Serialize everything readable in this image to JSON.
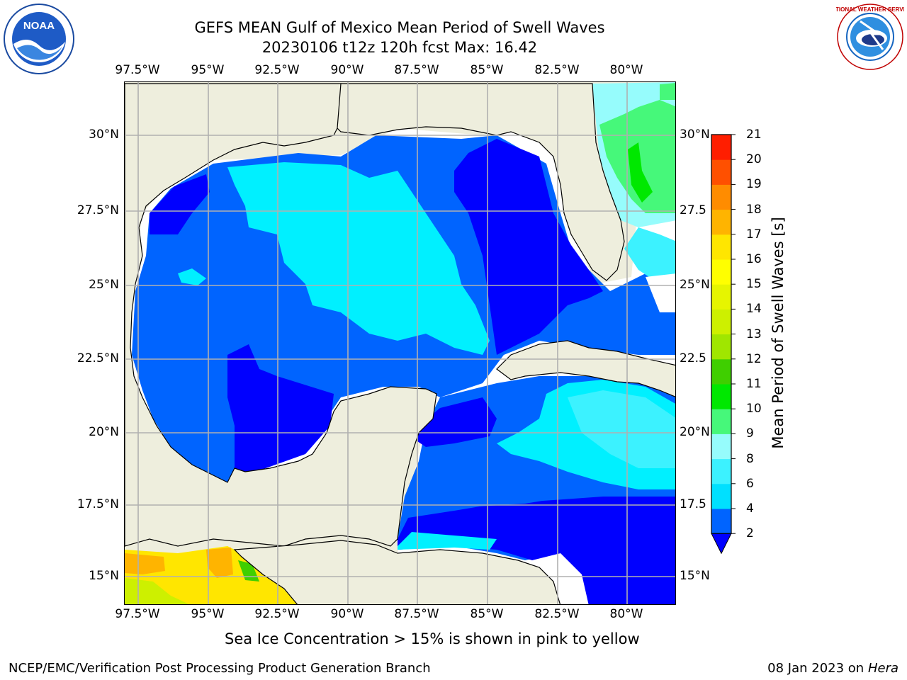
{
  "title": {
    "line1": "GEFS MEAN Gulf of Mexico Mean Period of Swell Waves",
    "line2": "20230106 t12z 120h fcst   Max: 16.42"
  },
  "map": {
    "lon_labels": [
      "97.5°W",
      "95°W",
      "92.5°W",
      "90°W",
      "87.5°W",
      "85°W",
      "82.5°W",
      "80°W"
    ],
    "lat_labels": [
      "30°N",
      "27.5°N",
      "25°N",
      "22.5°N",
      "20°N",
      "17.5°N",
      "15°N"
    ],
    "right_lat_labels": [
      "30°N",
      "27.5",
      "25°N",
      "22.5",
      "20°N",
      "17.5",
      "15°N"
    ],
    "land_color": "#eeeedd",
    "grid_color": "#b0b0b0"
  },
  "colorbar": {
    "label": "Mean Period of Swell Waves [s]",
    "ticks": [
      "2",
      "4",
      "6",
      "8",
      "9",
      "10",
      "11",
      "12",
      "13",
      "14",
      "15",
      "16",
      "17",
      "18",
      "19",
      "20",
      "21"
    ],
    "colors": [
      "#0064ff",
      "#00e0ff",
      "#3cf2ff",
      "#96fcfc",
      "#46f87a",
      "#00e800",
      "#3fcf00",
      "#a0e600",
      "#cdf000",
      "#e6f500",
      "#ffff00",
      "#ffe600",
      "#ffb400",
      "#ff8c00",
      "#ff5000",
      "#ff1e00"
    ],
    "extend_color": "#0000ff"
  },
  "notes": {
    "ice": "Sea Ice Concentration > 15% is shown in pink to yellow"
  },
  "footer": {
    "left": "NCEP/EMC/Verification Post Processing Product Generation Branch",
    "date": "08 Jan 2023 on ",
    "host": "Hera"
  },
  "logos": {
    "left": "noaa-logo",
    "right": "nws-logo",
    "noaa_text": "NOAA",
    "nws_text": "NATIONAL WEATHER SERVICE"
  }
}
